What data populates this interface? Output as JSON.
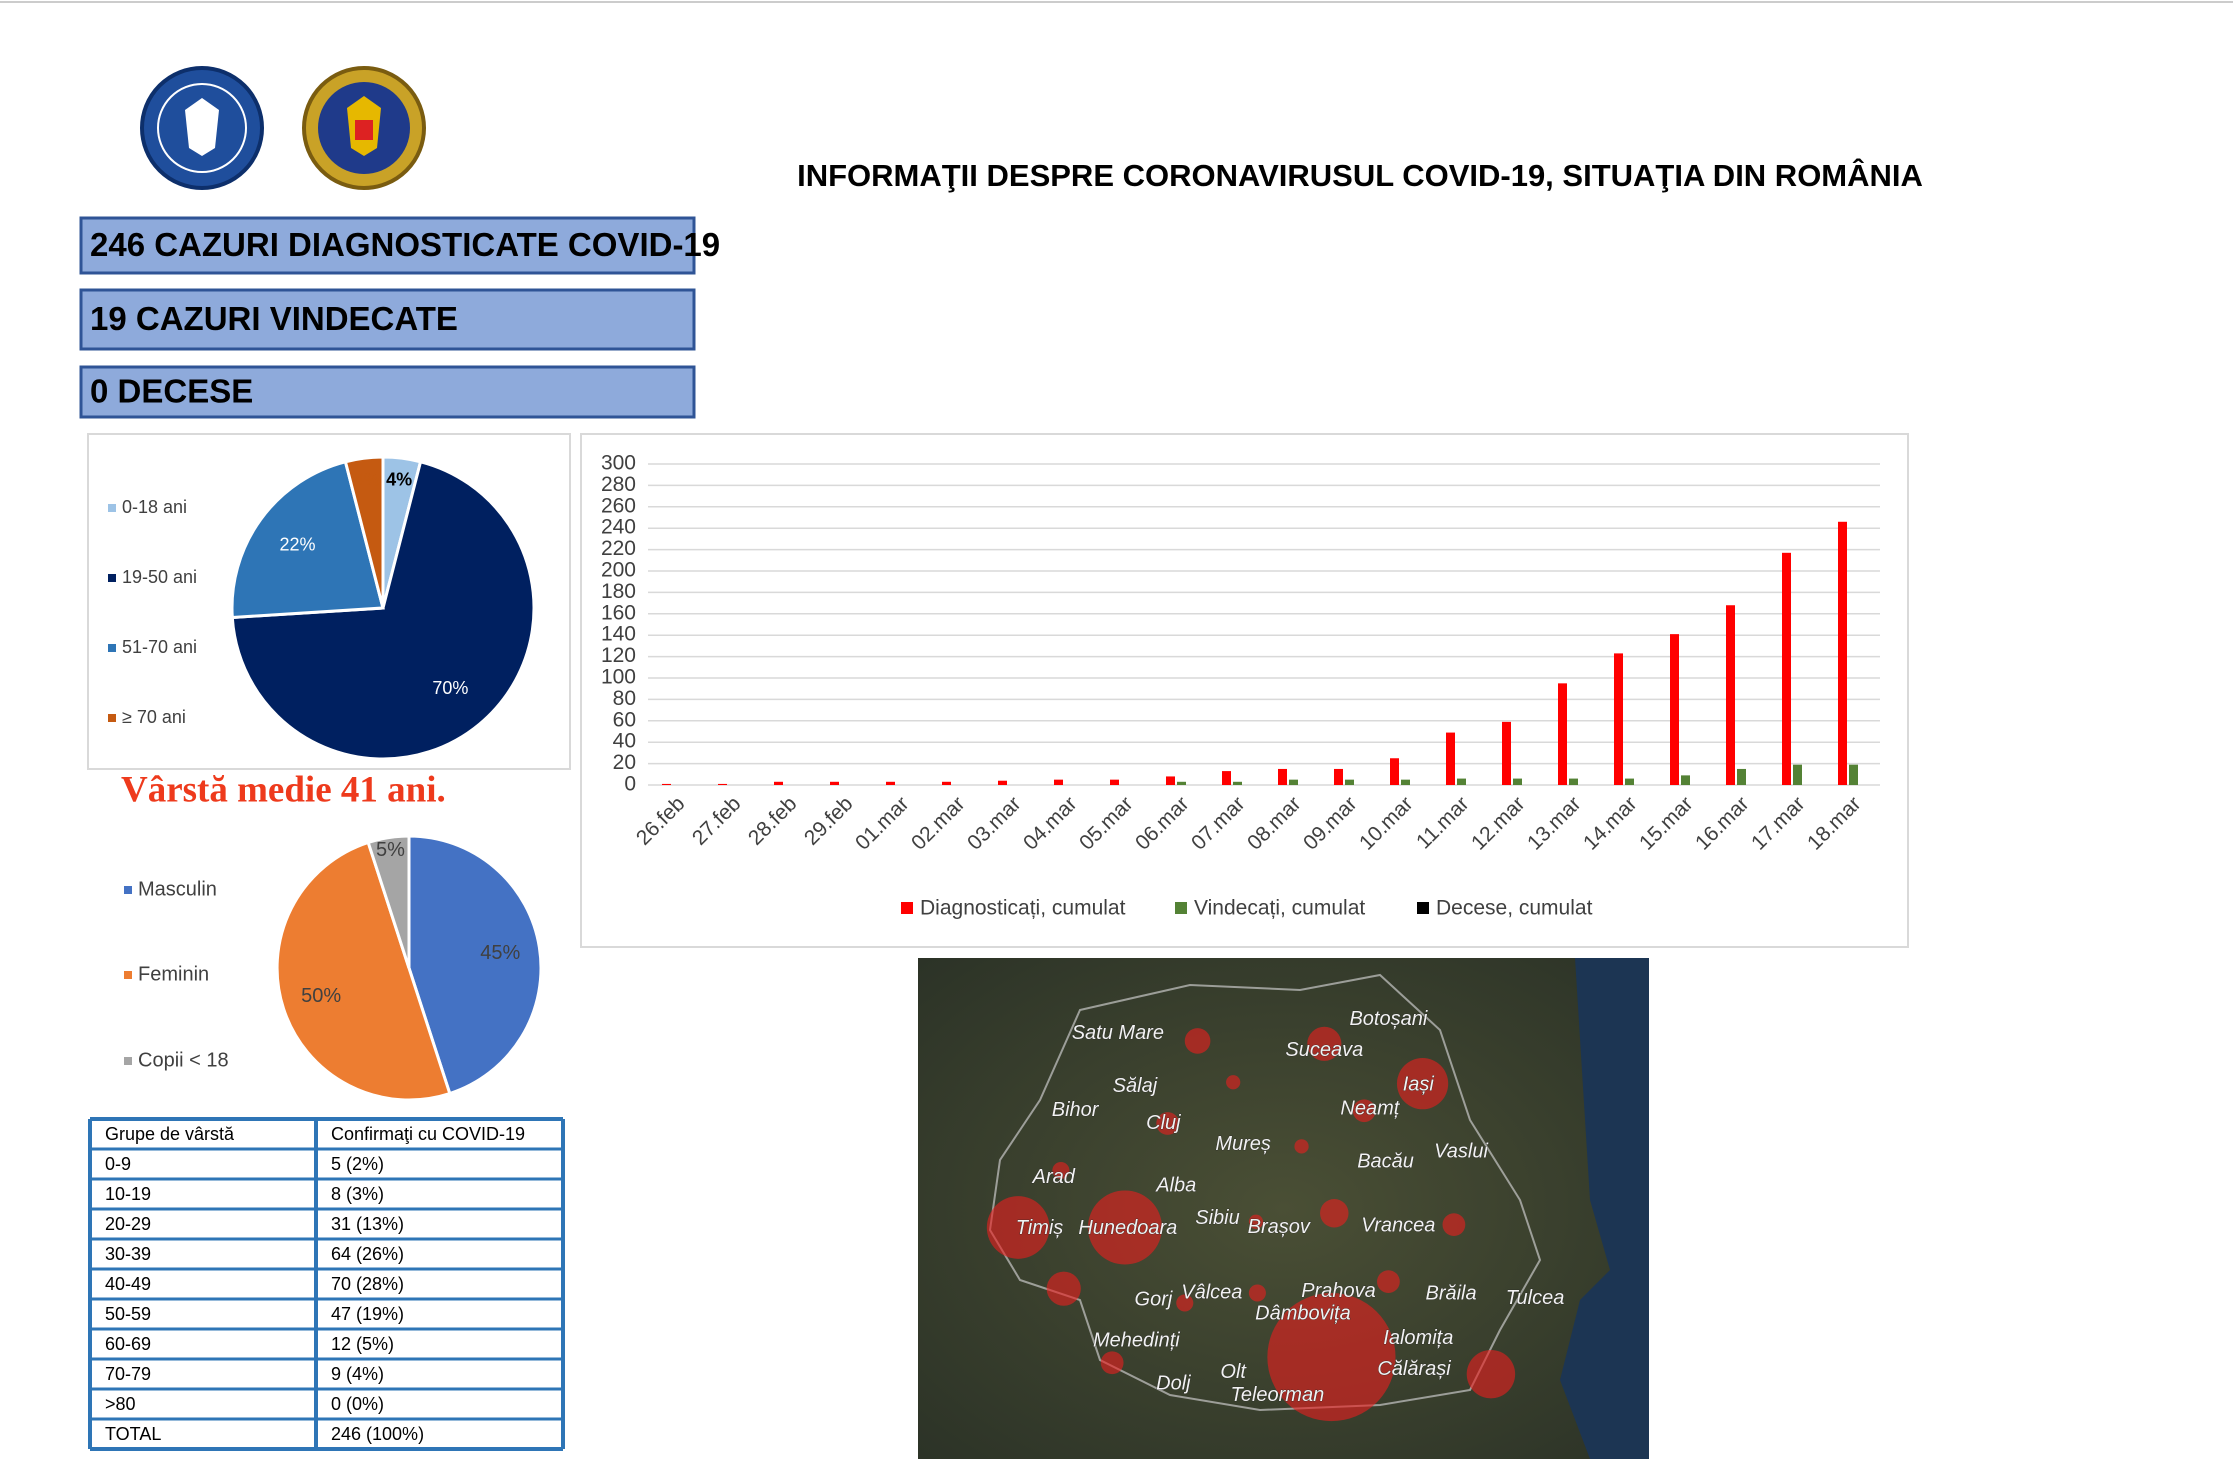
{
  "header": {
    "title": "INFORMAŢII DESPRE CORONAVIRUSUL COVID-19, SITUAŢIA DIN ROMÂNIA"
  },
  "stats": [
    "246 CAZURI DIAGNOSTICATE COVID-19",
    "19 CAZURI VINDECATE",
    "0 DECESE"
  ],
  "note": "Vârstă medie 41 ani.",
  "chart_data": [
    {
      "type": "pie",
      "categories": [
        "0-18 ani",
        "19-50 ani",
        "51-70 ani",
        "≥ 70 ani"
      ],
      "values": [
        4,
        70,
        22,
        4
      ],
      "value_labels": [
        "4%",
        "70%",
        "22%",
        "4%"
      ],
      "colors": [
        "#9dc3e6",
        "#002060",
        "#2e75b6",
        "#c55a11"
      ]
    },
    {
      "type": "pie",
      "categories": [
        "Masculin",
        "Feminin",
        "Copii < 18"
      ],
      "values": [
        45,
        50,
        5
      ],
      "value_labels": [
        "45%",
        "50%",
        "5%"
      ],
      "colors": [
        "#4472c4",
        "#ed7d31",
        "#a5a5a5"
      ]
    },
    {
      "type": "bar",
      "categories": [
        "26.feb",
        "27.feb",
        "28.feb",
        "29.feb",
        "01.mar",
        "02.mar",
        "03.mar",
        "04.mar",
        "05.mar",
        "06.mar",
        "07.mar",
        "08.mar",
        "09.mar",
        "10.mar",
        "11.mar",
        "12.mar",
        "13.mar",
        "14.mar",
        "15.mar",
        "16.mar",
        "17.mar",
        "18.mar"
      ],
      "series": [
        {
          "name": "Diagnosticați, cumulat",
          "color": "#ff0000",
          "values": [
            1,
            1,
            3,
            3,
            3,
            3,
            4,
            5,
            5,
            8,
            13,
            15,
            15,
            25,
            49,
            59,
            95,
            123,
            141,
            168,
            217,
            246
          ]
        },
        {
          "name": "Vindecați, cumulat",
          "color": "#548235",
          "values": [
            0,
            0,
            0,
            0,
            0,
            0,
            0,
            0,
            0,
            3,
            3,
            5,
            5,
            5,
            6,
            6,
            6,
            6,
            9,
            15,
            19,
            19
          ]
        },
        {
          "name": "Decese, cumulat",
          "color": "#000000",
          "values": [
            0,
            0,
            0,
            0,
            0,
            0,
            0,
            0,
            0,
            0,
            0,
            0,
            0,
            0,
            0,
            0,
            0,
            0,
            0,
            0,
            0,
            0
          ]
        }
      ],
      "ylim": [
        0,
        300
      ],
      "yticks": [
        0,
        20,
        40,
        60,
        80,
        100,
        120,
        140,
        160,
        180,
        200,
        220,
        240,
        260,
        280,
        300
      ],
      "grid": true
    }
  ],
  "table": {
    "header": [
      "Grupe de vârstă",
      "Confirmaţi cu COVID-19"
    ],
    "rows": [
      [
        "0-9",
        "5 (2%)"
      ],
      [
        "10-19",
        "8 (3%)"
      ],
      [
        "20-29",
        "31 (13%)"
      ],
      [
        "30-39",
        "64 (26%)"
      ],
      [
        "40-49",
        "70 (28%)"
      ],
      [
        "50-59",
        "47 (19%)"
      ],
      [
        "60-69",
        "12 (5%)"
      ],
      [
        "70-79",
        "9 (4%)"
      ],
      [
        ">80",
        "0 (0%)"
      ],
      [
        "TOTAL",
        "246 (100%)"
      ]
    ]
  },
  "map": {
    "labels": [
      "Satu Mare",
      "Botoșani",
      "Suceava",
      "Sălaj",
      "Iași",
      "Bihor",
      "Cluj",
      "Neamț",
      "Mureș",
      "Bacău",
      "Vaslui",
      "Arad",
      "Alba",
      "Timiș",
      "Hunedoara",
      "Sibiu",
      "Brașov",
      "Vrancea",
      "Gorj",
      "Vâlcea",
      "Prahova",
      "Brăila",
      "Tulcea",
      "Dâmbovița",
      "Mehedinți",
      "Ialomița",
      "Călărași",
      "Olt",
      "Dolj",
      "Teleorman"
    ]
  }
}
